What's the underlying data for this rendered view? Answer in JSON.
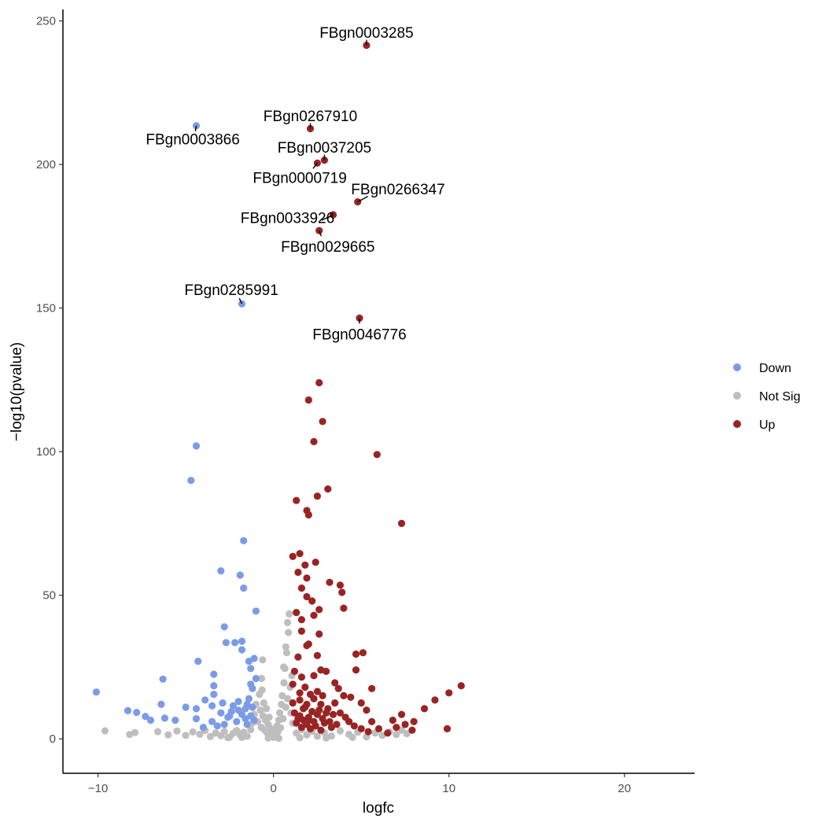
{
  "chart_data": {
    "type": "scatter",
    "title": "",
    "xlabel": "logfc",
    "ylabel": "−log10(pvalue)",
    "xlim": [
      -12,
      24
    ],
    "ylim": [
      -12,
      254
    ],
    "x_ticks": [
      -10,
      0,
      10,
      20
    ],
    "x_tick_labels": [
      "−10",
      "0",
      "10",
      "20"
    ],
    "y_ticks": [
      0,
      50,
      100,
      150,
      200,
      250
    ],
    "y_tick_labels": [
      "0",
      "50",
      "100",
      "150",
      "200",
      "250"
    ],
    "grid": false,
    "legend": {
      "placement": "right",
      "entries": [
        {
          "name": "Down",
          "color": "#7b9be6"
        },
        {
          "name": "Not Sig",
          "color": "#bebebe"
        },
        {
          "name": "Up",
          "color": "#992424"
        }
      ]
    },
    "series": [
      {
        "name": "Not Sig",
        "color": "#bebebe",
        "points": [
          [
            -9.6,
            2.8
          ],
          [
            -8.2,
            1.5
          ],
          [
            -7.9,
            2.2
          ],
          [
            -6.6,
            2.5
          ],
          [
            -6.0,
            1.4
          ],
          [
            -5.5,
            2.7
          ],
          [
            -5.0,
            1.2
          ],
          [
            -4.6,
            2.4
          ],
          [
            -4.2,
            1.6
          ],
          [
            -3.9,
            2.9
          ],
          [
            -3.6,
            0.8
          ],
          [
            -3.3,
            2.0
          ],
          [
            -3.0,
            1.1
          ],
          [
            -2.8,
            2.6
          ],
          [
            -2.5,
            0.6
          ],
          [
            -2.3,
            1.9
          ],
          [
            -2.1,
            2.9
          ],
          [
            -1.9,
            1.3
          ],
          [
            -1.7,
            2.3
          ],
          [
            -1.5,
            0.9
          ],
          [
            -1.3,
            3.2
          ],
          [
            -1.2,
            5.5
          ],
          [
            -1.1,
            8.5
          ],
          [
            -1.0,
            12.0
          ],
          [
            -0.9,
            6.0
          ],
          [
            -0.8,
            15.5
          ],
          [
            -0.75,
            10.0
          ],
          [
            -0.7,
            4.0
          ],
          [
            -0.65,
            17.0
          ],
          [
            -0.6,
            8.0
          ],
          [
            -0.55,
            12.5
          ],
          [
            -0.5,
            3.0
          ],
          [
            -0.45,
            6.5
          ],
          [
            -0.4,
            10.5
          ],
          [
            -0.35,
            2.0
          ],
          [
            -0.3,
            5.0
          ],
          [
            -0.25,
            7.5
          ],
          [
            -0.2,
            1.5
          ],
          [
            -0.15,
            3.5
          ],
          [
            -0.1,
            0.8
          ],
          [
            -0.05,
            2.2
          ],
          [
            0.0,
            0.5
          ],
          [
            0.05,
            1.8
          ],
          [
            0.1,
            3.0
          ],
          [
            0.15,
            1.2
          ],
          [
            0.2,
            4.5
          ],
          [
            0.25,
            2.5
          ],
          [
            0.3,
            6.5
          ],
          [
            0.35,
            9.0
          ],
          [
            0.4,
            3.8
          ],
          [
            0.45,
            12.0
          ],
          [
            0.5,
            15.0
          ],
          [
            0.55,
            7.0
          ],
          [
            0.6,
            19.5
          ],
          [
            0.65,
            24.5
          ],
          [
            0.7,
            11.0
          ],
          [
            0.75,
            30.0
          ],
          [
            0.8,
            14.0
          ],
          [
            0.85,
            37.0
          ],
          [
            0.9,
            43.5
          ],
          [
            0.95,
            18.0
          ],
          [
            1.0,
            9.0
          ],
          [
            1.05,
            22.0
          ],
          [
            1.1,
            5.5
          ],
          [
            0.58,
            25.0
          ],
          [
            0.7,
            32.0
          ],
          [
            0.8,
            40.5
          ],
          [
            -0.62,
            27.5
          ],
          [
            -0.68,
            21.0
          ],
          [
            1.3,
            2.0
          ],
          [
            1.6,
            3.2
          ],
          [
            1.9,
            1.4
          ],
          [
            2.2,
            2.6
          ],
          [
            2.5,
            0.9
          ],
          [
            2.9,
            2.1
          ],
          [
            3.3,
            1.0
          ],
          [
            3.8,
            2.8
          ],
          [
            4.3,
            1.6
          ],
          [
            4.8,
            2.3
          ],
          [
            5.3,
            0.7
          ],
          [
            5.8,
            2.0
          ],
          [
            6.2,
            1.2
          ],
          [
            6.6,
            2.4
          ],
          [
            7.0,
            1.5
          ],
          [
            7.3,
            3.0
          ],
          [
            7.6,
            1.8
          ],
          [
            0.3,
            0.2
          ],
          [
            -0.3,
            0.3
          ],
          [
            1.5,
            0.4
          ],
          [
            -1.8,
            0.5
          ],
          [
            3.0,
            0.3
          ],
          [
            -2.6,
            0.4
          ],
          [
            4.5,
            0.5
          ]
        ]
      },
      {
        "name": "Down",
        "color": "#7b9be6",
        "points": [
          [
            -10.1,
            16.3
          ],
          [
            -8.3,
            9.8
          ],
          [
            -7.8,
            9.2
          ],
          [
            -7.3,
            7.8
          ],
          [
            -7.0,
            6.5
          ],
          [
            -6.4,
            12.0
          ],
          [
            -6.3,
            20.8
          ],
          [
            -6.2,
            7.2
          ],
          [
            -5.6,
            6.5
          ],
          [
            -5.0,
            11.0
          ],
          [
            -4.4,
            10.5
          ],
          [
            -4.4,
            7.0
          ],
          [
            -4.3,
            27.0
          ],
          [
            -4.0,
            4.0
          ],
          [
            -3.9,
            13.5
          ],
          [
            -3.5,
            6.0
          ],
          [
            -3.5,
            11.5
          ],
          [
            -3.4,
            15.5
          ],
          [
            -3.4,
            18.5
          ],
          [
            -3.4,
            22.5
          ],
          [
            -3.0,
            9.0
          ],
          [
            -3.0,
            58.5
          ],
          [
            -2.8,
            39.0
          ],
          [
            -2.7,
            33.5
          ],
          [
            -2.5,
            8.0
          ],
          [
            -2.3,
            11.5
          ],
          [
            -2.2,
            33.5
          ],
          [
            -2.0,
            10.0
          ],
          [
            -1.9,
            57.0
          ],
          [
            -1.8,
            31.0
          ],
          [
            -1.8,
            34.0
          ],
          [
            -1.7,
            52.5
          ],
          [
            -1.6,
            7.0
          ],
          [
            -1.5,
            12.0
          ],
          [
            -1.4,
            27.0
          ],
          [
            -1.3,
            24.5
          ],
          [
            -1.1,
            28.0
          ],
          [
            -1.0,
            21.0
          ],
          [
            -1.0,
            44.5
          ],
          [
            -1.7,
            69.0
          ],
          [
            -4.4,
            102.0
          ],
          [
            -4.7,
            90.0
          ],
          [
            -4.4,
            213.5
          ],
          [
            -1.8,
            151.5
          ],
          [
            -2.8,
            5.0
          ],
          [
            -2.6,
            7.5
          ],
          [
            -2.4,
            9.5
          ],
          [
            -2.1,
            6.0
          ],
          [
            -1.8,
            8.5
          ],
          [
            -1.6,
            10.5
          ],
          [
            -1.5,
            5.0
          ],
          [
            -1.4,
            14.0
          ],
          [
            -1.3,
            8.0
          ],
          [
            -1.2,
            11.0
          ],
          [
            -1.2,
            17.5
          ],
          [
            -1.1,
            6.5
          ],
          [
            -3.2,
            4.5
          ],
          [
            -2.9,
            12.5
          ],
          [
            -2.0,
            13.0
          ],
          [
            -1.3,
            19.0
          ]
        ]
      },
      {
        "name": "Up",
        "color": "#992424",
        "points": [
          [
            5.3,
            241.5
          ],
          [
            2.1,
            212.5
          ],
          [
            2.5,
            200.5
          ],
          [
            2.9,
            201.5
          ],
          [
            4.8,
            187.0
          ],
          [
            3.4,
            182.5
          ],
          [
            2.6,
            177.0
          ],
          [
            4.9,
            146.5
          ],
          [
            2.6,
            124.0
          ],
          [
            2.0,
            118.0
          ],
          [
            2.8,
            110.5
          ],
          [
            2.3,
            103.5
          ],
          [
            5.9,
            99.0
          ],
          [
            1.3,
            83.0
          ],
          [
            3.1,
            87.0
          ],
          [
            2.5,
            84.5
          ],
          [
            1.9,
            79.5
          ],
          [
            2.0,
            78.0
          ],
          [
            7.3,
            75.0
          ],
          [
            1.1,
            63.5
          ],
          [
            1.5,
            64.5
          ],
          [
            1.4,
            58.0
          ],
          [
            1.8,
            60.5
          ],
          [
            2.4,
            61.5
          ],
          [
            1.9,
            56.0
          ],
          [
            1.6,
            52.5
          ],
          [
            1.9,
            49.5
          ],
          [
            2.2,
            48.0
          ],
          [
            2.6,
            45.0
          ],
          [
            3.2,
            54.5
          ],
          [
            3.8,
            53.5
          ],
          [
            3.9,
            51.0
          ],
          [
            4.0,
            45.5
          ],
          [
            1.3,
            44.0
          ],
          [
            1.6,
            41.5
          ],
          [
            2.3,
            43.0
          ],
          [
            1.6,
            37.5
          ],
          [
            2.0,
            33.0
          ],
          [
            2.6,
            36.5
          ],
          [
            1.9,
            32.5
          ],
          [
            1.4,
            28.5
          ],
          [
            2.5,
            29.0
          ],
          [
            3.0,
            23.5
          ],
          [
            4.7,
            29.5
          ],
          [
            5.1,
            30.0
          ],
          [
            1.2,
            23.5
          ],
          [
            1.6,
            21.5
          ],
          [
            2.3,
            22.0
          ],
          [
            2.7,
            24.0
          ],
          [
            1.1,
            19.0
          ],
          [
            1.8,
            18.0
          ],
          [
            2.5,
            16.5
          ],
          [
            2.8,
            15.0
          ],
          [
            3.5,
            19.5
          ],
          [
            3.7,
            17.5
          ],
          [
            4.0,
            15.0
          ],
          [
            4.4,
            14.5
          ],
          [
            4.7,
            24.0
          ],
          [
            5.6,
            17.5
          ],
          [
            1.1,
            12.5
          ],
          [
            1.5,
            13.5
          ],
          [
            1.9,
            12.0
          ],
          [
            2.3,
            14.0
          ],
          [
            2.7,
            12.0
          ],
          [
            3.1,
            10.5
          ],
          [
            3.5,
            12.5
          ],
          [
            3.8,
            9.0
          ],
          [
            4.1,
            7.5
          ],
          [
            5.0,
            12.5
          ],
          [
            5.3,
            10.0
          ],
          [
            5.6,
            6.0
          ],
          [
            1.2,
            9.0
          ],
          [
            1.5,
            8.0
          ],
          [
            1.7,
            10.5
          ],
          [
            2.0,
            6.5
          ],
          [
            2.2,
            9.5
          ],
          [
            2.5,
            8.5
          ],
          [
            2.8,
            7.0
          ],
          [
            3.0,
            9.0
          ],
          [
            3.2,
            6.0
          ],
          [
            3.4,
            8.5
          ],
          [
            3.6,
            5.0
          ],
          [
            4.3,
            6.0
          ],
          [
            4.6,
            4.5
          ],
          [
            5.0,
            3.5
          ],
          [
            5.4,
            2.5
          ],
          [
            6.0,
            3.5
          ],
          [
            6.5,
            2.0
          ],
          [
            7.0,
            4.0
          ],
          [
            7.5,
            5.0
          ],
          [
            6.8,
            6.5
          ],
          [
            7.3,
            8.5
          ],
          [
            7.9,
            3.0
          ],
          [
            8.0,
            6.0
          ],
          [
            8.6,
            10.5
          ],
          [
            9.2,
            13.5
          ],
          [
            10.0,
            16.0
          ],
          [
            10.7,
            18.5
          ],
          [
            9.9,
            3.5
          ],
          [
            1.3,
            5.5
          ],
          [
            1.6,
            4.0
          ],
          [
            1.9,
            5.0
          ],
          [
            2.1,
            3.5
          ],
          [
            2.4,
            4.5
          ],
          [
            2.7,
            3.0
          ],
          [
            2.9,
            5.5
          ],
          [
            3.3,
            4.0
          ],
          [
            1.4,
            7.0
          ],
          [
            1.7,
            6.5
          ],
          [
            2.0,
            7.5
          ],
          [
            2.3,
            6.0
          ],
          [
            2.6,
            10.0
          ],
          [
            1.8,
            11.0
          ],
          [
            2.1,
            15.5
          ],
          [
            1.5,
            16.0
          ]
        ]
      }
    ],
    "annotations": [
      {
        "label": "FBgn0003285",
        "x": 5.3,
        "y": 241.5,
        "lx": 5.3,
        "ly": 246.0
      },
      {
        "label": "FBgn0267910",
        "x": 2.1,
        "y": 212.5,
        "lx": 2.1,
        "ly": 217.0
      },
      {
        "label": "FBgn0003866",
        "x": -4.4,
        "y": 213.5,
        "lx": -4.6,
        "ly": 209.0
      },
      {
        "label": "FBgn0037205",
        "x": 2.9,
        "y": 201.5,
        "lx": 2.9,
        "ly": 206.0
      },
      {
        "label": "FBgn0000719",
        "x": 2.5,
        "y": 200.5,
        "lx": 1.5,
        "ly": 195.5
      },
      {
        "label": "FBgn0266347",
        "x": 4.8,
        "y": 187.0,
        "lx": 7.1,
        "ly": 191.5
      },
      {
        "label": "FBgn0033926",
        "x": 3.4,
        "y": 182.5,
        "lx": 0.8,
        "ly": 181.5
      },
      {
        "label": "FBgn0029665",
        "x": 2.6,
        "y": 177.0,
        "lx": 3.1,
        "ly": 171.5
      },
      {
        "label": "FBgn0285991",
        "x": -1.8,
        "y": 151.5,
        "lx": -2.4,
        "ly": 156.5
      },
      {
        "label": "FBgn0046776",
        "x": 4.9,
        "y": 146.5,
        "lx": 4.9,
        "ly": 141.0
      }
    ]
  }
}
